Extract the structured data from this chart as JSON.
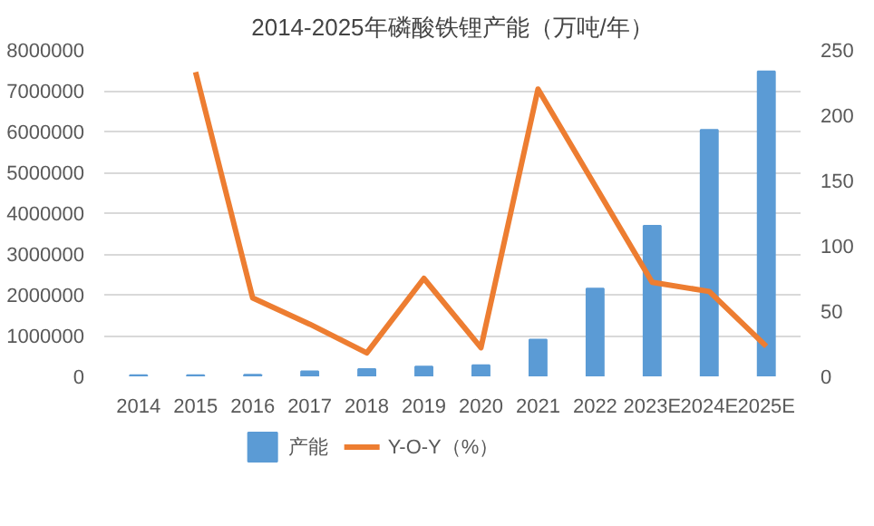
{
  "chart_data": {
    "type": "bar",
    "title": "2014-2025年磷酸铁锂产能（万吨/年）",
    "categories": [
      "2014",
      "2015",
      "2016",
      "2017",
      "2018",
      "2019",
      "2020",
      "2021",
      "2022",
      "2023E",
      "2024E",
      "2025E"
    ],
    "series": [
      {
        "name": "产能",
        "color": "#5b9bd5",
        "values": [
          30000,
          30000,
          40000,
          120000,
          180000,
          240000,
          270000,
          900000,
          2150000,
          3690000,
          6040000,
          7470000
        ]
      },
      {
        "name": "Y-O-Y（%）",
        "type": "line",
        "axis": "y2",
        "color": "#ed7d31",
        "values": [
          null,
          233,
          60,
          40,
          18,
          75,
          22,
          220,
          146,
          72,
          65,
          23
        ]
      }
    ],
    "ylim": [
      0,
      8000000
    ],
    "yticks": [
      0,
      1000000,
      2000000,
      3000000,
      4000000,
      5000000,
      6000000,
      7000000,
      8000000
    ],
    "y2lim": [
      0,
      250
    ],
    "y2ticks": [
      0,
      50,
      100,
      150,
      200,
      250
    ],
    "grid": "y",
    "legend": "bottom"
  }
}
